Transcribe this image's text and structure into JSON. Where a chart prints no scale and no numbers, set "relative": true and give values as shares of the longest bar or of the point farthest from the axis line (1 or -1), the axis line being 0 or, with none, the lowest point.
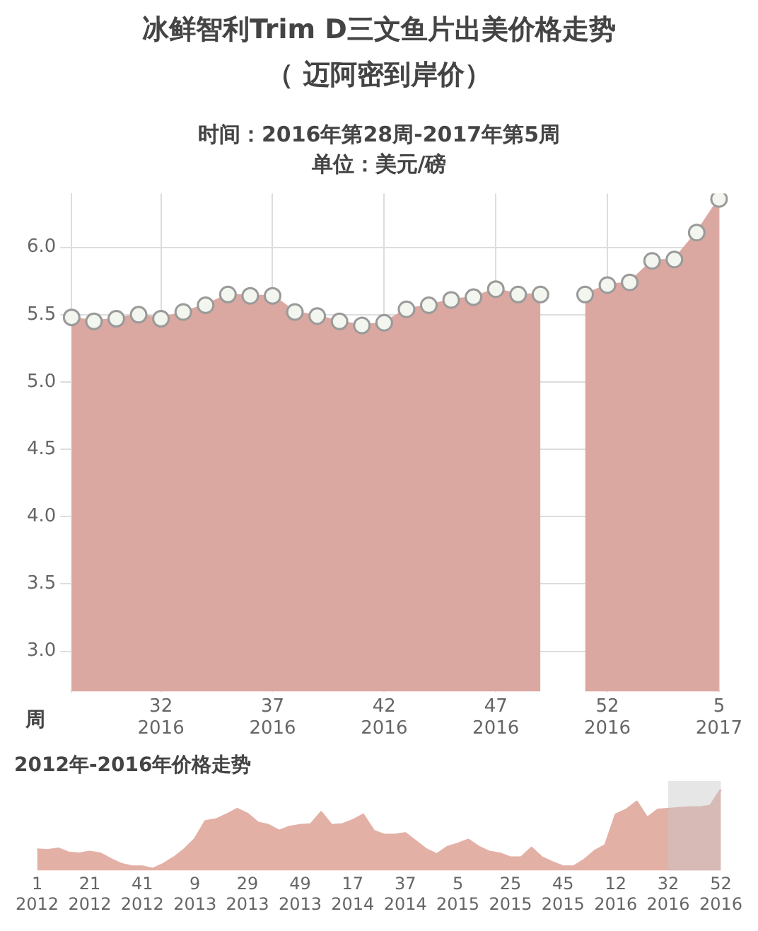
{
  "chart_data": [
    {
      "type": "area",
      "title": "冰鲜智利Trim D三文鱼片出美价格走势",
      "subtitle": "（ 迈阿密到岸价）",
      "annotations": [
        "时间：2016年第28周-2017年第5周",
        "单位：美元/磅"
      ],
      "xlabel": "周",
      "categories": [
        null,
        null,
        null,
        null,
        "32\n2016",
        null,
        null,
        null,
        null,
        "37\n2016",
        null,
        null,
        null,
        null,
        "42\n2016",
        null,
        null,
        null,
        null,
        "47\n2016",
        null,
        null,
        null,
        null,
        "52\n2016",
        null,
        null,
        null,
        null,
        "5\n2017"
      ],
      "series": [
        {
          "color": "#daa8a0",
          "values": [
            5.48,
            5.45,
            5.47,
            5.5,
            5.47,
            5.52,
            5.57,
            5.65,
            5.64,
            5.64,
            5.52,
            5.49,
            5.45,
            5.42,
            5.44,
            5.54,
            5.57,
            5.61,
            5.63,
            5.69,
            5.65,
            5.65,
            null,
            5.65,
            5.72,
            5.74,
            5.9,
            5.91,
            6.11,
            6.36
          ]
        }
      ],
      "ylim": [
        2.7,
        6.4
      ],
      "yticks": [
        {
          "value": 3,
          "label": "3.0"
        },
        {
          "value": 3.5,
          "label": "3.5"
        },
        {
          "value": 4,
          "label": "4.0"
        },
        {
          "value": 4.5,
          "label": "4.5"
        },
        {
          "value": 5,
          "label": "5.0"
        },
        {
          "value": 5.5,
          "label": "5.5"
        },
        {
          "value": 6,
          "label": "6.0"
        }
      ],
      "grid": true,
      "marker": "circle"
    },
    {
      "type": "area",
      "title": "2012年-2016年价格走势",
      "relative": true,
      "categories": [
        "1\n2012",
        null,
        null,
        null,
        null,
        "21\n2012",
        null,
        null,
        null,
        null,
        "41\n2012",
        null,
        null,
        null,
        null,
        "9\n2013",
        null,
        null,
        null,
        null,
        "29\n2013",
        null,
        null,
        null,
        null,
        "49\n2013",
        null,
        null,
        null,
        null,
        "17\n2014",
        null,
        null,
        null,
        null,
        "37\n2014",
        null,
        null,
        null,
        null,
        "5\n2015",
        null,
        null,
        null,
        null,
        "25\n2015",
        null,
        null,
        null,
        null,
        "45\n2015",
        null,
        null,
        null,
        null,
        "12\n2016",
        null,
        null,
        null,
        null,
        "32\n2016",
        null,
        null,
        null,
        null,
        "52\n2016"
      ],
      "series": [
        {
          "color": "#e3b0a6",
          "values": [
            0.26,
            0.25,
            0.27,
            0.22,
            0.21,
            0.23,
            0.21,
            0.14,
            0.08,
            0.05,
            0.05,
            0.02,
            0.08,
            0.16,
            0.26,
            0.39,
            0.61,
            0.63,
            0.69,
            0.76,
            0.7,
            0.59,
            0.56,
            0.49,
            0.54,
            0.56,
            0.57,
            0.72,
            0.56,
            0.57,
            0.62,
            0.69,
            0.49,
            0.44,
            0.44,
            0.46,
            0.36,
            0.26,
            0.2,
            0.29,
            0.33,
            0.38,
            0.29,
            0.23,
            0.21,
            0.16,
            0.16,
            0.28,
            0.16,
            0.1,
            0.05,
            0.05,
            0.13,
            0.24,
            0.31,
            0.69,
            0.75,
            0.85,
            0.65,
            0.75,
            0.76,
            0.77,
            0.78,
            0.78,
            0.8,
            1
          ]
        }
      ],
      "bands": [
        {
          "axis": "x",
          "from": "32\n2016",
          "to": "52\n2016",
          "color": "#c8c8c8"
        }
      ]
    }
  ]
}
